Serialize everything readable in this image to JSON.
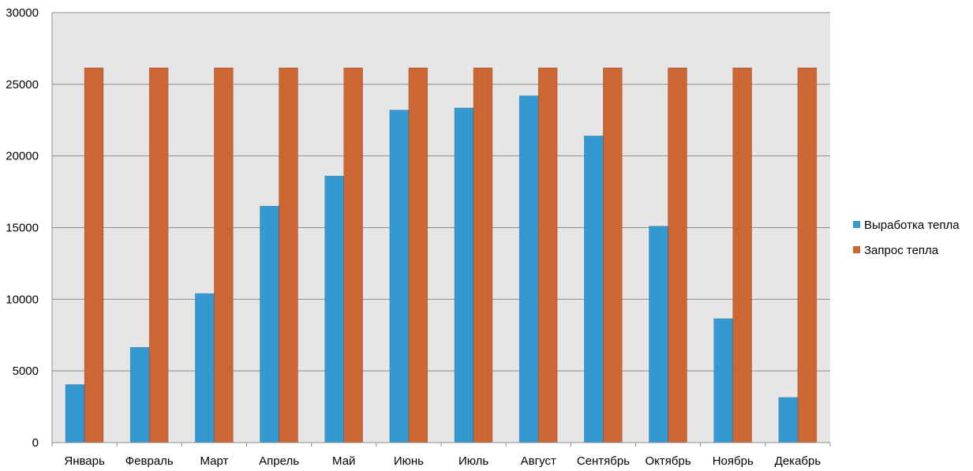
{
  "chart_data": {
    "type": "bar",
    "title": "",
    "xlabel": "",
    "ylabel": "",
    "ylim": [
      0,
      30000
    ],
    "yticks": [
      0,
      5000,
      10000,
      15000,
      20000,
      25000,
      30000
    ],
    "grid": true,
    "legend_position": "right",
    "categories": [
      "Январь",
      "Февраль",
      "Март",
      "Апрель",
      "Май",
      "Июнь",
      "Июль",
      "Август",
      "Сентябрь",
      "Октябрь",
      "Ноябрь",
      "Декабрь"
    ],
    "series": [
      {
        "name": "Выработка тепла",
        "color": "#3399d0",
        "values": [
          4050,
          6650,
          10400,
          16500,
          18600,
          23200,
          23350,
          24200,
          21400,
          15100,
          8650,
          3150
        ]
      },
      {
        "name": "Запрос тепла",
        "color": "#cc6633",
        "values": [
          26150,
          26150,
          26150,
          26150,
          26150,
          26150,
          26150,
          26150,
          26150,
          26150,
          26150,
          26150
        ]
      }
    ]
  },
  "colors": {
    "plot_background": "#e6e6e6",
    "gridline": "#8c8c8c"
  }
}
